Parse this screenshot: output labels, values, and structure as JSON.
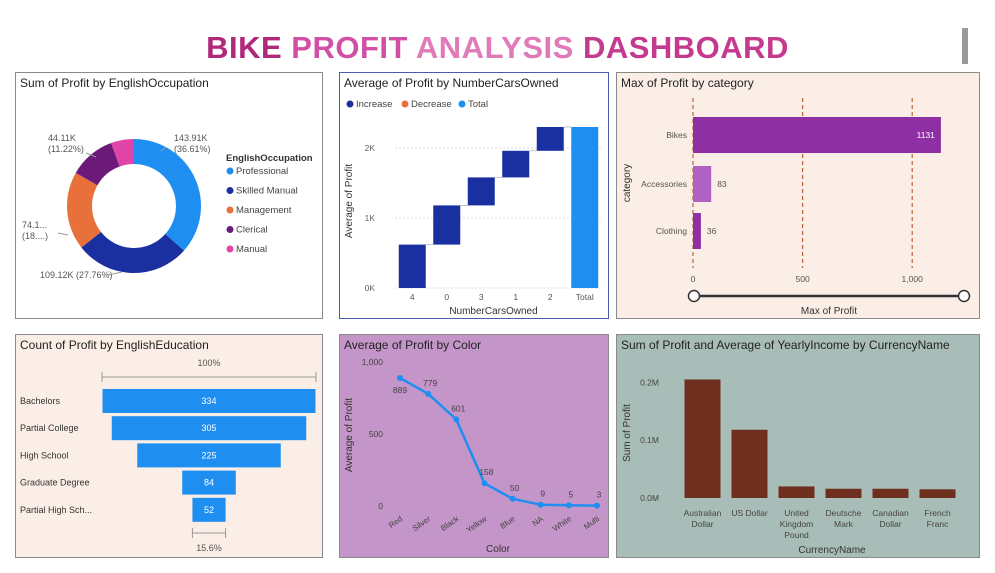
{
  "dashboard": {
    "title_words": [
      "BIKE",
      "PROFIT",
      "ANALYSIS",
      "DASHBOARD"
    ],
    "title_colors": [
      "#b0287a",
      "#d14fa5",
      "#e07bb8",
      "#c43a8f"
    ]
  },
  "chart_data": [
    {
      "id": "occupation",
      "type": "pie",
      "title": "Sum of Profit by EnglishOccupation",
      "legend_title": "EnglishOccupation",
      "legend_position": "right",
      "categories": [
        "Professional",
        "Skilled Manual",
        "Management",
        "Clerical",
        "Manual"
      ],
      "values": [
        143.91,
        109.12,
        74.1,
        44.11,
        21.8
      ],
      "colors": [
        "#1f8ef1",
        "#1a2fa0",
        "#e8703a",
        "#6b1a7a",
        "#e044a8"
      ],
      "data_labels": [
        "143.91K\n(36.61%)",
        "109.12K (27.76%)",
        "74.1...\n(18....)",
        "44.11K\n(11.22%)",
        ""
      ]
    },
    {
      "id": "cars",
      "type": "bar",
      "subtype": "waterfall",
      "title": "Average of Profit by NumberCarsOwned",
      "xlabel": "NumberCarsOwned",
      "ylabel": "Average of Profit",
      "legend": [
        "Increase",
        "Decrease",
        "Total"
      ],
      "legend_colors": [
        "#1a2fa0",
        "#e8703a",
        "#1f8ef1"
      ],
      "legend_position": "top-left",
      "categories": [
        "4",
        "0",
        "3",
        "1",
        "2",
        "Total"
      ],
      "increments": [
        620,
        560,
        400,
        380,
        340,
        2300
      ],
      "ylim": [
        0,
        2500
      ],
      "yticks": [
        0,
        1000,
        2000
      ],
      "ytick_labels": [
        "0K",
        "1K",
        "2K"
      ],
      "grid": true
    },
    {
      "id": "category",
      "type": "bar",
      "orientation": "horizontal",
      "title": "Max of Profit by category",
      "xlabel": "Max of Profit",
      "ylabel": "category",
      "categories": [
        "Bikes",
        "Accessories",
        "Clothing"
      ],
      "values": [
        1131,
        83,
        36
      ],
      "value_labels": [
        "1131",
        "83",
        "36"
      ],
      "colors": [
        "#8e2fa3",
        "#b062c4",
        "#8e2fa3"
      ],
      "xlim": [
        0,
        1250
      ],
      "xticks": [
        0,
        500,
        1000
      ],
      "xtick_labels": [
        "0",
        "500",
        "1,000"
      ],
      "grid": true
    },
    {
      "id": "education",
      "type": "bar",
      "subtype": "funnel",
      "title": "Count of Profit by EnglishEducation",
      "categories": [
        "Bachelors",
        "Partial College",
        "High School",
        "Graduate Degree",
        "Partial High Sch..."
      ],
      "values": [
        334,
        305,
        225,
        84,
        52
      ],
      "top_label": "100%",
      "bottom_label": "15.6%",
      "color": "#1f8ef1"
    },
    {
      "id": "color",
      "type": "line",
      "title": "Average of Profit by Color",
      "xlabel": "Color",
      "ylabel": "Average of Profit",
      "categories": [
        "Red",
        "Silver",
        "Black",
        "Yellow",
        "Blue",
        "NA",
        "White",
        "Multi"
      ],
      "values": [
        889,
        779,
        601,
        158,
        50,
        9,
        5,
        3
      ],
      "ylim": [
        0,
        1000
      ],
      "yticks": [
        0,
        500,
        1000
      ],
      "ytick_labels": [
        "0",
        "500",
        "1,000"
      ],
      "color": "#1f8ef1",
      "grid": false
    },
    {
      "id": "currency",
      "type": "bar",
      "title": "Sum of Profit and Average of YearlyIncome by CurrencyName",
      "xlabel": "CurrencyName",
      "ylabel": "Sum of Profit",
      "categories": [
        "Australian\nDollar",
        "US Dollar",
        "United\nKingdom\nPound",
        "Deutsche\nMark",
        "Canadian\nDollar",
        "French\nFranc"
      ],
      "values": [
        0.205,
        0.118,
        0.02,
        0.016,
        0.016,
        0.015
      ],
      "ylim": [
        0,
        0.23
      ],
      "yticks": [
        0,
        0.1,
        0.2
      ],
      "ytick_labels": [
        "0.0M",
        "0.1M",
        "0.2M"
      ],
      "color": "#6e2f1e",
      "grid": false
    }
  ]
}
